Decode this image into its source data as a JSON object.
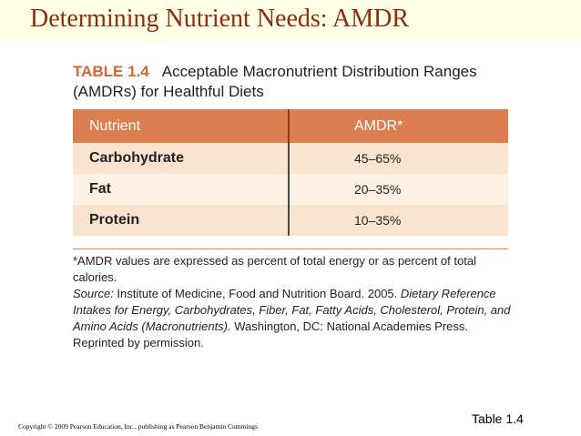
{
  "slide": {
    "title": "Determining Nutrient Needs: AMDR",
    "table_ref": "Table 1.4",
    "copyright": "Copyright © 2009 Pearson Education, Inc., publishing as Pearson Benjamin Cummings"
  },
  "table": {
    "number": "TABLE 1.4",
    "caption": "Acceptable Macronutrient Distribution Ranges (AMDRs) for Healthful Diets",
    "headers": [
      "Nutrient",
      "AMDR*"
    ],
    "rows": [
      {
        "nutrient": "Carbohydrate",
        "amdr": "45–65%"
      },
      {
        "nutrient": "Fat",
        "amdr": "20–35%"
      },
      {
        "nutrient": "Protein",
        "amdr": "10–35%"
      }
    ]
  },
  "footnote": {
    "asterisk": "*AMDR values are expressed as percent of total energy or as percent of total calories.",
    "source_label": "Source:",
    "source_text": " Institute of Medicine, Food and Nutrition Board. 2005. ",
    "source_title": "Dietary Reference Intakes for Energy, Carbohydrates, Fiber, Fat, Fatty Acids, Cholesterol, Protein, and Amino Acids (Macronutrients).",
    "source_rest": " Washington, DC: National Academies Press. Reprinted by permission."
  },
  "colors": {
    "title": "#8e2b12",
    "title_band": "#ffffe6",
    "header_row": "#dc7e4f",
    "row_odd": "#fbe4cf",
    "row_even": "#fdf1e4",
    "table_number": "#d8623a"
  }
}
